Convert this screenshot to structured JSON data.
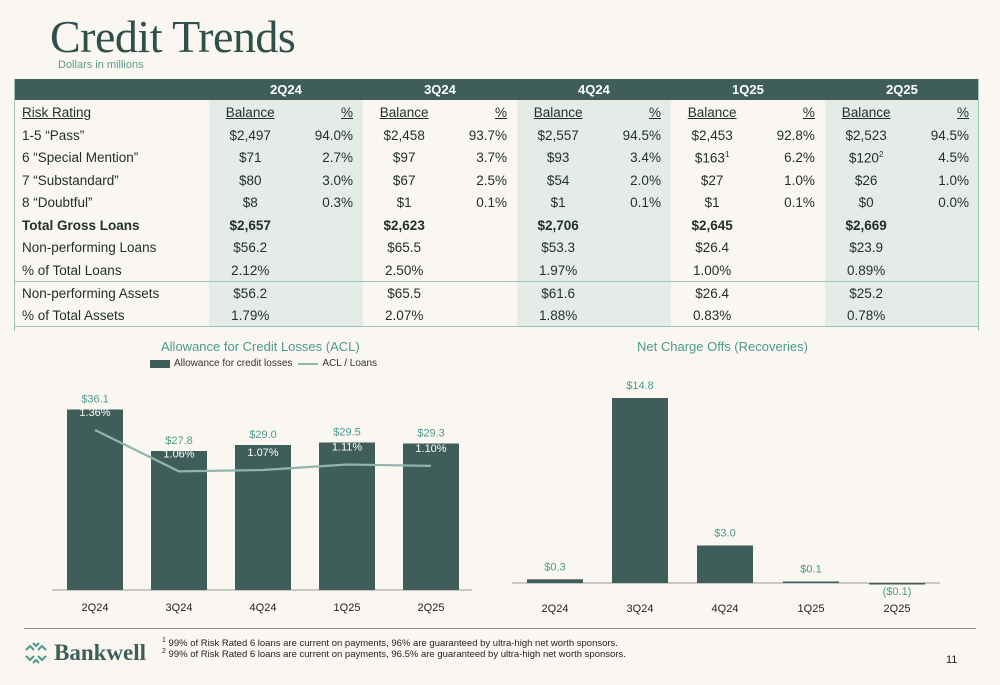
{
  "title": "Credit Trends",
  "subtitle": "Dollars in millions",
  "table": {
    "quarters": [
      "2Q24",
      "3Q24",
      "4Q24",
      "1Q25",
      "2Q25"
    ],
    "subheader": {
      "label": "Risk Rating",
      "balance": "Balance",
      "pct": "%"
    },
    "rows": [
      {
        "label": "1-5 “Pass”",
        "cells": [
          [
            "$2,497",
            "94.0%"
          ],
          [
            "$2,458",
            "93.7%"
          ],
          [
            "$2,557",
            "94.5%"
          ],
          [
            "$2,453",
            "92.8%"
          ],
          [
            "$2,523",
            "94.5%"
          ]
        ]
      },
      {
        "label": "6 “Special Mention”",
        "cells": [
          [
            "$71",
            "2.7%"
          ],
          [
            "$97",
            "3.7%"
          ],
          [
            "$93",
            "3.4%"
          ],
          [
            "$163",
            "6.2%"
          ],
          [
            "$120",
            "4.5%"
          ]
        ],
        "sups": [
          "",
          "",
          "",
          "1",
          "2"
        ]
      },
      {
        "label": "7 “Substandard”",
        "cells": [
          [
            "$80",
            "3.0%"
          ],
          [
            "$67",
            "2.5%"
          ],
          [
            "$54",
            "2.0%"
          ],
          [
            "$27",
            "1.0%"
          ],
          [
            "$26",
            "1.0%"
          ]
        ]
      },
      {
        "label": "8 “Doubtful”",
        "cells": [
          [
            "$8",
            "0.3%"
          ],
          [
            "$1",
            "0.1%"
          ],
          [
            "$1",
            "0.1%"
          ],
          [
            "$1",
            "0.1%"
          ],
          [
            "$0",
            "0.0%"
          ]
        ]
      },
      {
        "label": "Total Gross Loans",
        "bold": true,
        "cells": [
          [
            "$2,657",
            ""
          ],
          [
            "$2,623",
            ""
          ],
          [
            "$2,706",
            ""
          ],
          [
            "$2,645",
            ""
          ],
          [
            "$2,669",
            ""
          ]
        ]
      },
      {
        "label": "Non-performing Loans",
        "cells": [
          [
            "$56.2",
            ""
          ],
          [
            "$65.5",
            ""
          ],
          [
            "$53.3",
            ""
          ],
          [
            "$26.4",
            ""
          ],
          [
            "$23.9",
            ""
          ]
        ]
      },
      {
        "label": "% of Total Loans",
        "cells": [
          [
            "2.12%",
            ""
          ],
          [
            "2.50%",
            ""
          ],
          [
            "1.97%",
            ""
          ],
          [
            "1.00%",
            ""
          ],
          [
            "0.89%",
            ""
          ]
        ]
      },
      {
        "label": "Non-performing Assets",
        "sep": true,
        "cells": [
          [
            "$56.2",
            ""
          ],
          [
            "$65.5",
            ""
          ],
          [
            "$61.6",
            ""
          ],
          [
            "$26.4",
            ""
          ],
          [
            "$25.2",
            ""
          ]
        ]
      },
      {
        "label": "% of Total Assets",
        "cells": [
          [
            "1.79%",
            ""
          ],
          [
            "2.07%",
            ""
          ],
          [
            "1.88%",
            ""
          ],
          [
            "0.83%",
            ""
          ],
          [
            "0.78%",
            ""
          ]
        ]
      }
    ]
  },
  "chart_data": [
    {
      "type": "bar",
      "title": "Allowance for Credit Losses (ACL)",
      "categories": [
        "2Q24",
        "3Q24",
        "4Q24",
        "1Q25",
        "2Q25"
      ],
      "series": [
        {
          "name": "Allowance for credit losses",
          "values": [
            36.1,
            27.8,
            29.0,
            29.5,
            29.3
          ],
          "labels": [
            "$36.1",
            "$27.8",
            "$29.0",
            "$29.5",
            "$29.3"
          ]
        },
        {
          "name": "ACL / Loans",
          "type": "line",
          "values": [
            1.36,
            1.06,
            1.07,
            1.11,
            1.1
          ],
          "labels": [
            "1.36%",
            "1.06%",
            "1.07%",
            "1.11%",
            "1.10%"
          ]
        }
      ],
      "legend": "top"
    },
    {
      "type": "bar",
      "title": "Net Charge Offs (Recoveries)",
      "categories": [
        "2Q24",
        "3Q24",
        "4Q24",
        "1Q25",
        "2Q25"
      ],
      "values": [
        0.3,
        14.8,
        3.0,
        0.1,
        -0.1
      ],
      "labels": [
        "$0.3",
        "$14.8",
        "$3.0",
        "$0.1",
        "($0.1)"
      ]
    }
  ],
  "colors": {
    "bar": "#3f5e59",
    "line": "#8fb5ac",
    "accent": "#4b9a8c",
    "shade": "#e5ece8"
  },
  "logo": {
    "text": "Bankwell"
  },
  "footnotes": [
    {
      "sup": "1",
      "text": " 99% of Risk Rated 6 loans are current on payments, 96% are guaranteed by ultra-high net worth sponsors."
    },
    {
      "sup": "2",
      "text": " 99% of Risk Rated 6 loans are current on payments, 96.5% are guaranteed by ultra-high net worth sponsors."
    }
  ],
  "page_number": "11"
}
